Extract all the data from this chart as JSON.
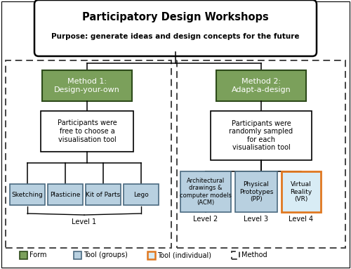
{
  "title": "Participatory Design Workshops",
  "subtitle": "Purpose: generate ideas and design concepts for the future",
  "bg_color": "#ffffff",
  "green_fc": "#7ba05b",
  "green_ec": "#2d4a1a",
  "light_blue_fc": "#b8d0e0",
  "light_blue_ec": "#4a6a80",
  "vr_fc": "#d8ecf5",
  "vr_ec": "#e07820",
  "dashed_ec": "#444444",
  "method1_text": "Method 1:\nDesign-your-own",
  "method2_text": "Method 2:\nAdapt-a-design",
  "desc1_text": "Participants were\nfree to choose a\nvisualisation tool",
  "desc2_text": "Participants were\nrandomly sampled\nfor each\nvisualisation tool",
  "tools_left": [
    "Sketching",
    "Plasticine",
    "Kit of Parts",
    "Lego"
  ],
  "tools_right_acm": "Architectural\ndrawings &\ncomputer models\n(ACM)",
  "tools_right_pp": "Physical\nPrototypes\n(PP)",
  "tools_right_vr": "Virtual\nReality\n(VR)",
  "level1": "Level 1",
  "level2": "Level 2",
  "level3": "Level 3",
  "level4": "Level 4",
  "legend_labels": [
    "Form",
    "Tool (groups)",
    "Tool (individual)",
    "Method"
  ]
}
